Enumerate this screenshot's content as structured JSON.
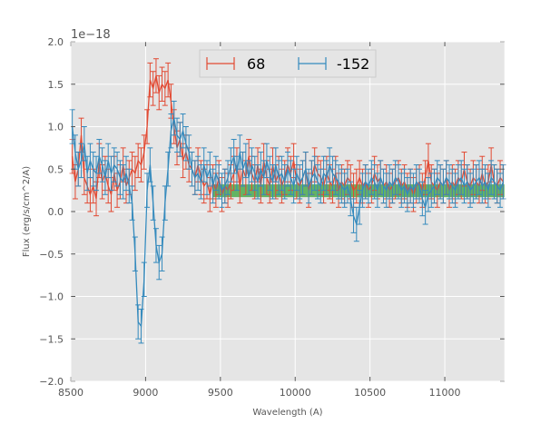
{
  "chart_data": {
    "type": "line",
    "title": "",
    "xlabel": "Wavelength (A)",
    "ylabel": "Flux (erg/s/cm^2/A)",
    "y_offset_label": "1e−18",
    "xlim": [
      8500,
      11400
    ],
    "ylim": [
      -2.0,
      2.0
    ],
    "xticks": [
      8500,
      9000,
      9500,
      10000,
      10500,
      11000
    ],
    "xtick_labels": [
      "8500",
      "9000",
      "9500",
      "10000",
      "10500",
      "11000"
    ],
    "yticks": [
      -2.0,
      -1.5,
      -1.0,
      -0.5,
      0.0,
      0.5,
      1.0,
      1.5,
      2.0
    ],
    "ytick_labels": [
      "−2.0",
      "−1.5",
      "−1.0",
      "−0.5",
      "0.0",
      "0.5",
      "1.0",
      "1.5",
      "2.0"
    ],
    "grid": true,
    "legend_position": "top-center",
    "band": {
      "x0": 9450,
      "x1": 11400,
      "y0": 0.17,
      "y1": 0.32,
      "color": "#2ca02c"
    },
    "series": [
      {
        "name": "68",
        "color": "#e24a33",
        "x": [
          8510,
          8530,
          8550,
          8570,
          8590,
          8610,
          8630,
          8650,
          8670,
          8690,
          8710,
          8730,
          8750,
          8770,
          8790,
          8810,
          8830,
          8850,
          8870,
          8890,
          8910,
          8930,
          8950,
          8970,
          8990,
          9010,
          9030,
          9050,
          9070,
          9090,
          9110,
          9130,
          9150,
          9170,
          9190,
          9210,
          9230,
          9250,
          9270,
          9290,
          9310,
          9330,
          9350,
          9370,
          9390,
          9410,
          9430,
          9450,
          9470,
          9490,
          9510,
          9530,
          9550,
          9570,
          9590,
          9610,
          9630,
          9650,
          9670,
          9690,
          9710,
          9730,
          9750,
          9770,
          9790,
          9810,
          9830,
          9850,
          9870,
          9890,
          9910,
          9930,
          9950,
          9970,
          9990,
          10010,
          10030,
          10050,
          10070,
          10090,
          10110,
          10130,
          10150,
          10170,
          10190,
          10210,
          10230,
          10250,
          10270,
          10290,
          10310,
          10330,
          10350,
          10370,
          10390,
          10410,
          10430,
          10450,
          10470,
          10490,
          10510,
          10530,
          10550,
          10570,
          10590,
          10610,
          10630,
          10650,
          10670,
          10690,
          10710,
          10730,
          10750,
          10770,
          10790,
          10810,
          10830,
          10850,
          10870,
          10890,
          10910,
          10930,
          10950,
          10970,
          10990,
          11010,
          11030,
          11050,
          11070,
          11090,
          11110,
          11130,
          11150,
          11170,
          11190,
          11210,
          11230,
          11250,
          11270,
          11290,
          11310,
          11330,
          11350,
          11370,
          11390
        ],
        "y": [
          0.65,
          0.35,
          0.5,
          0.9,
          0.4,
          0.3,
          0.2,
          0.3,
          0.15,
          0.6,
          0.35,
          0.45,
          0.3,
          0.2,
          0.45,
          0.25,
          0.35,
          0.55,
          0.3,
          0.4,
          0.5,
          0.45,
          0.6,
          0.55,
          0.7,
          1.0,
          1.55,
          1.45,
          1.6,
          1.4,
          1.5,
          1.45,
          1.55,
          1.3,
          1.0,
          0.75,
          0.85,
          0.6,
          0.7,
          0.55,
          0.5,
          0.4,
          0.55,
          0.4,
          0.3,
          0.35,
          0.2,
          0.35,
          0.25,
          0.4,
          0.2,
          0.3,
          0.25,
          0.35,
          0.45,
          0.55,
          0.3,
          0.5,
          0.4,
          0.65,
          0.45,
          0.35,
          0.55,
          0.3,
          0.6,
          0.4,
          0.3,
          0.55,
          0.35,
          0.45,
          0.3,
          0.4,
          0.55,
          0.45,
          0.6,
          0.35,
          0.3,
          0.4,
          0.5,
          0.25,
          0.4,
          0.55,
          0.45,
          0.4,
          0.3,
          0.45,
          0.35,
          0.3,
          0.45,
          0.25,
          0.35,
          0.3,
          0.4,
          0.35,
          0.25,
          0.3,
          0.4,
          0.3,
          0.35,
          0.25,
          0.3,
          0.45,
          0.35,
          0.4,
          0.3,
          0.35,
          0.25,
          0.3,
          0.35,
          0.4,
          0.3,
          0.35,
          0.25,
          0.3,
          0.2,
          0.3,
          0.35,
          0.25,
          0.4,
          0.6,
          0.35,
          0.3,
          0.25,
          0.35,
          0.3,
          0.4,
          0.25,
          0.35,
          0.3,
          0.4,
          0.35,
          0.5,
          0.35,
          0.3,
          0.4,
          0.35,
          0.3,
          0.45,
          0.3,
          0.35,
          0.55,
          0.35,
          0.3,
          0.4,
          0.35
        ],
        "err": 0.2
      },
      {
        "name": "-152",
        "color": "#348abd",
        "x": [
          8510,
          8530,
          8550,
          8570,
          8590,
          8610,
          8630,
          8650,
          8670,
          8690,
          8710,
          8730,
          8750,
          8770,
          8790,
          8810,
          8830,
          8850,
          8870,
          8890,
          8910,
          8930,
          8950,
          8970,
          8990,
          9010,
          9030,
          9050,
          9070,
          9090,
          9110,
          9130,
          9150,
          9170,
          9190,
          9210,
          9230,
          9250,
          9270,
          9290,
          9310,
          9330,
          9350,
          9370,
          9390,
          9410,
          9430,
          9450,
          9470,
          9490,
          9510,
          9530,
          9550,
          9570,
          9590,
          9610,
          9630,
          9650,
          9670,
          9690,
          9710,
          9730,
          9750,
          9770,
          9790,
          9810,
          9830,
          9850,
          9870,
          9890,
          9910,
          9930,
          9950,
          9970,
          9990,
          10010,
          10030,
          10050,
          10070,
          10090,
          10110,
          10130,
          10150,
          10170,
          10190,
          10210,
          10230,
          10250,
          10270,
          10290,
          10310,
          10330,
          10350,
          10370,
          10390,
          10410,
          10430,
          10450,
          10470,
          10490,
          10510,
          10530,
          10550,
          10570,
          10590,
          10610,
          10630,
          10650,
          10670,
          10690,
          10710,
          10730,
          10750,
          10770,
          10790,
          10810,
          10830,
          10850,
          10870,
          10890,
          10910,
          10930,
          10950,
          10970,
          10990,
          11010,
          11030,
          11050,
          11070,
          11090,
          11110,
          11130,
          11150,
          11170,
          11190,
          11210,
          11230,
          11250,
          11270,
          11290,
          11310,
          11330,
          11350,
          11370,
          11390
        ],
        "y": [
          1.0,
          0.7,
          0.5,
          0.6,
          0.8,
          0.45,
          0.6,
          0.5,
          0.45,
          0.65,
          0.55,
          0.4,
          0.6,
          0.45,
          0.55,
          0.5,
          0.4,
          0.35,
          0.45,
          0.3,
          0.1,
          -0.5,
          -1.3,
          -1.35,
          -0.8,
          0.25,
          0.55,
          0.1,
          -0.4,
          -0.6,
          -0.5,
          0.1,
          0.5,
          0.95,
          1.1,
          0.9,
          0.85,
          0.95,
          0.8,
          0.7,
          0.5,
          0.4,
          0.45,
          0.35,
          0.55,
          0.4,
          0.5,
          0.3,
          0.45,
          0.35,
          0.25,
          0.3,
          0.4,
          0.55,
          0.65,
          0.45,
          0.7,
          0.5,
          0.6,
          0.4,
          0.55,
          0.45,
          0.35,
          0.5,
          0.4,
          0.6,
          0.45,
          0.35,
          0.55,
          0.4,
          0.45,
          0.35,
          0.5,
          0.4,
          0.3,
          0.45,
          0.35,
          0.4,
          0.5,
          0.3,
          0.4,
          0.45,
          0.35,
          0.3,
          0.45,
          0.4,
          0.55,
          0.45,
          0.4,
          0.35,
          0.3,
          0.25,
          0.3,
          0.15,
          -0.05,
          -0.15,
          0.05,
          0.25,
          0.35,
          0.3,
          0.4,
          0.35,
          0.25,
          0.4,
          0.3,
          0.25,
          0.35,
          0.3,
          0.4,
          0.35,
          0.25,
          0.3,
          0.2,
          0.3,
          0.25,
          0.35,
          0.3,
          0.15,
          0.05,
          0.2,
          0.25,
          0.3,
          0.4,
          0.35,
          0.3,
          0.4,
          0.35,
          0.3,
          0.25,
          0.35,
          0.4,
          0.3,
          0.35,
          0.25,
          0.3,
          0.35,
          0.4,
          0.3,
          0.35,
          0.25,
          0.4,
          0.35,
          0.3,
          0.25,
          0.35
        ],
        "err": 0.2
      }
    ]
  }
}
